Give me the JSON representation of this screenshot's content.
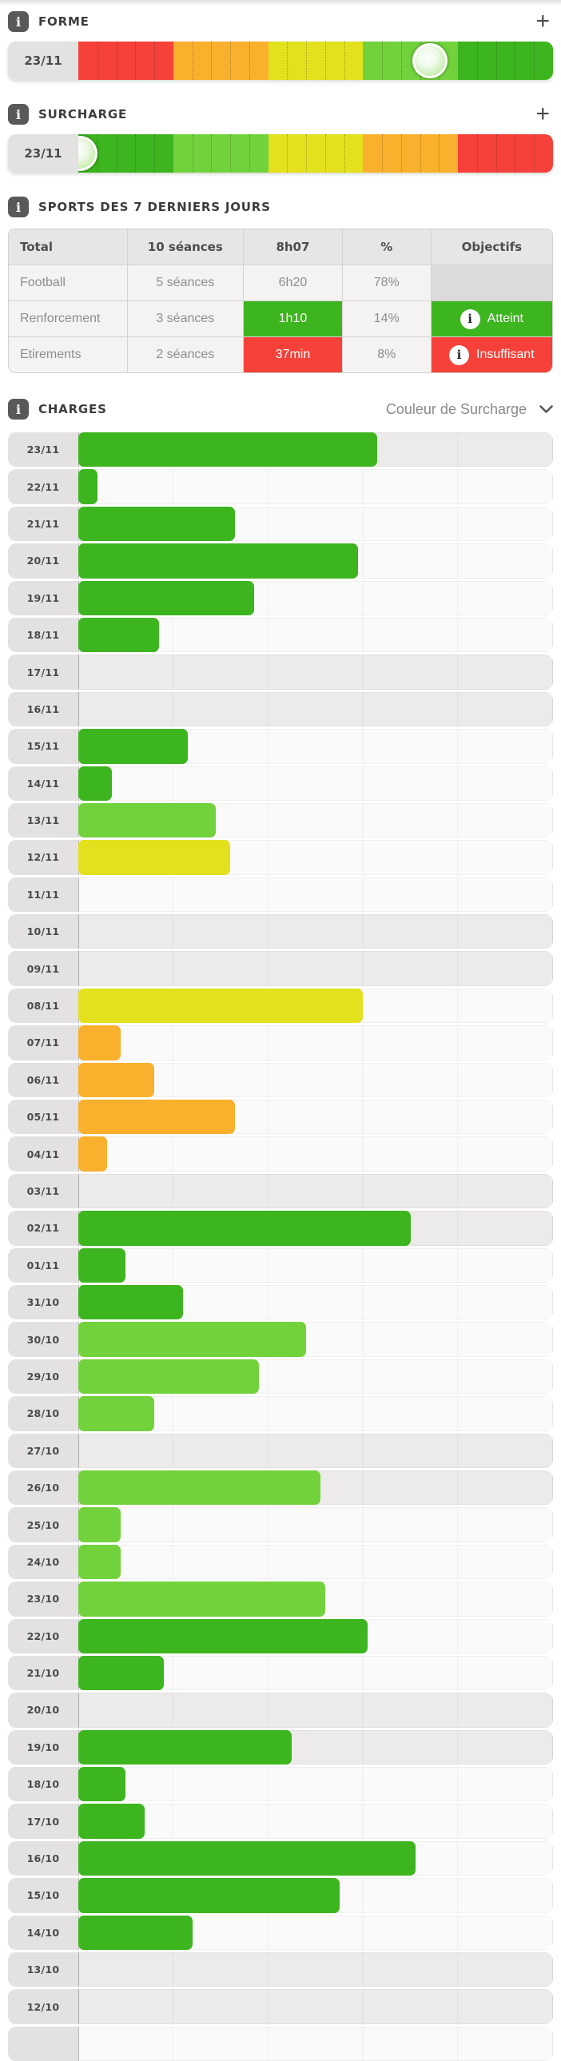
{
  "palette": {
    "green": "#3db51f",
    "light_green": "#72d23c",
    "yellow": "#e3e11d",
    "orange": "#f9b02c",
    "red": "#f5413a"
  },
  "forme": {
    "title": "FORME",
    "info_icon": "i",
    "add_button": "+",
    "date": "23/11",
    "segment_colors": [
      "red",
      "orange",
      "yellow",
      "light_green",
      "green"
    ],
    "knob_position_pct": 74
  },
  "surcharge": {
    "title": "SURCHARGE",
    "info_icon": "i",
    "add_button": "+",
    "date": "23/11",
    "segment_colors": [
      "green",
      "light_green",
      "yellow",
      "orange",
      "red"
    ],
    "knob_position_pct": 0.4
  },
  "sports": {
    "title": "SPORTS DES 7 DERNIERS JOURS",
    "info_icon": "i",
    "table": {
      "headers": [
        "Total",
        "10 séances",
        "8h07",
        "%",
        "Objectifs"
      ],
      "rows": [
        {
          "sport": "Football",
          "seances": "5 séances",
          "duree": "6h20",
          "duree_style": "plain",
          "pourcent": "78%",
          "objectif": "",
          "objectif_style": "empty"
        },
        {
          "sport": "Renforcement",
          "seances": "3 séances",
          "duree": "1h10",
          "duree_style": "green",
          "pourcent": "14%",
          "objectif": "Atteint",
          "objectif_style": "green"
        },
        {
          "sport": "Etirements",
          "seances": "2 séances",
          "duree": "37min",
          "duree_style": "red",
          "pourcent": "8%",
          "objectif": "Insuffisant",
          "objectif_style": "red"
        }
      ]
    }
  },
  "charges": {
    "title": "CHARGES",
    "info_icon": "i",
    "dropdown_value": "Couleur de Surcharge",
    "chart_data": {
      "type": "bar",
      "orientation": "horizontal",
      "axis_range_pct": [
        0,
        100
      ],
      "gridlines_pct": [
        20,
        40,
        60,
        80
      ],
      "rows": [
        {
          "date": "23/11",
          "value_pct": 63,
          "level": "green",
          "weekend": true
        },
        {
          "date": "22/11",
          "value_pct": 4,
          "level": "green",
          "weekend": false
        },
        {
          "date": "21/11",
          "value_pct": 33,
          "level": "green",
          "weekend": false
        },
        {
          "date": "20/11",
          "value_pct": 59,
          "level": "green",
          "weekend": false
        },
        {
          "date": "19/11",
          "value_pct": 37,
          "level": "green",
          "weekend": false
        },
        {
          "date": "18/11",
          "value_pct": 17,
          "level": "green",
          "weekend": false
        },
        {
          "date": "17/11",
          "value_pct": 0,
          "level": "none",
          "weekend": true
        },
        {
          "date": "16/11",
          "value_pct": 0,
          "level": "none",
          "weekend": true
        },
        {
          "date": "15/11",
          "value_pct": 23,
          "level": "green",
          "weekend": false
        },
        {
          "date": "14/11",
          "value_pct": 7,
          "level": "green",
          "weekend": false
        },
        {
          "date": "13/11",
          "value_pct": 29,
          "level": "light_green",
          "weekend": false
        },
        {
          "date": "12/11",
          "value_pct": 32,
          "level": "yellow",
          "weekend": false
        },
        {
          "date": "11/11",
          "value_pct": 0,
          "level": "none",
          "weekend": false
        },
        {
          "date": "10/11",
          "value_pct": 0,
          "level": "none",
          "weekend": true
        },
        {
          "date": "09/11",
          "value_pct": 0,
          "level": "none",
          "weekend": true
        },
        {
          "date": "08/11",
          "value_pct": 60,
          "level": "yellow",
          "weekend": false
        },
        {
          "date": "07/11",
          "value_pct": 9,
          "level": "orange",
          "weekend": false
        },
        {
          "date": "06/11",
          "value_pct": 16,
          "level": "orange",
          "weekend": false
        },
        {
          "date": "05/11",
          "value_pct": 33,
          "level": "orange",
          "weekend": false
        },
        {
          "date": "04/11",
          "value_pct": 6,
          "level": "orange",
          "weekend": false
        },
        {
          "date": "03/11",
          "value_pct": 0,
          "level": "none",
          "weekend": true
        },
        {
          "date": "02/11",
          "value_pct": 70,
          "level": "green",
          "weekend": true
        },
        {
          "date": "01/11",
          "value_pct": 10,
          "level": "green",
          "weekend": false
        },
        {
          "date": "31/10",
          "value_pct": 22,
          "level": "green",
          "weekend": false
        },
        {
          "date": "30/10",
          "value_pct": 48,
          "level": "light_green",
          "weekend": false
        },
        {
          "date": "29/10",
          "value_pct": 38,
          "level": "light_green",
          "weekend": false
        },
        {
          "date": "28/10",
          "value_pct": 16,
          "level": "light_green",
          "weekend": false
        },
        {
          "date": "27/10",
          "value_pct": 0,
          "level": "none",
          "weekend": true
        },
        {
          "date": "26/10",
          "value_pct": 51,
          "level": "light_green",
          "weekend": true
        },
        {
          "date": "25/10",
          "value_pct": 9,
          "level": "light_green",
          "weekend": false
        },
        {
          "date": "24/10",
          "value_pct": 9,
          "level": "light_green",
          "weekend": false
        },
        {
          "date": "23/10",
          "value_pct": 52,
          "level": "light_green",
          "weekend": false
        },
        {
          "date": "22/10",
          "value_pct": 61,
          "level": "green",
          "weekend": false
        },
        {
          "date": "21/10",
          "value_pct": 18,
          "level": "green",
          "weekend": false
        },
        {
          "date": "20/10",
          "value_pct": 0,
          "level": "none",
          "weekend": true
        },
        {
          "date": "19/10",
          "value_pct": 45,
          "level": "green",
          "weekend": true
        },
        {
          "date": "18/10",
          "value_pct": 10,
          "level": "green",
          "weekend": false
        },
        {
          "date": "17/10",
          "value_pct": 14,
          "level": "green",
          "weekend": false
        },
        {
          "date": "16/10",
          "value_pct": 71,
          "level": "green",
          "weekend": false
        },
        {
          "date": "15/10",
          "value_pct": 55,
          "level": "green",
          "weekend": false
        },
        {
          "date": "14/10",
          "value_pct": 24,
          "level": "green",
          "weekend": false
        },
        {
          "date": "13/10",
          "value_pct": 0,
          "level": "none",
          "weekend": true
        },
        {
          "date": "12/10",
          "value_pct": 0,
          "level": "none",
          "weekend": true
        },
        {
          "date": "",
          "value_pct": 0,
          "level": "none",
          "weekend": false
        }
      ]
    }
  }
}
